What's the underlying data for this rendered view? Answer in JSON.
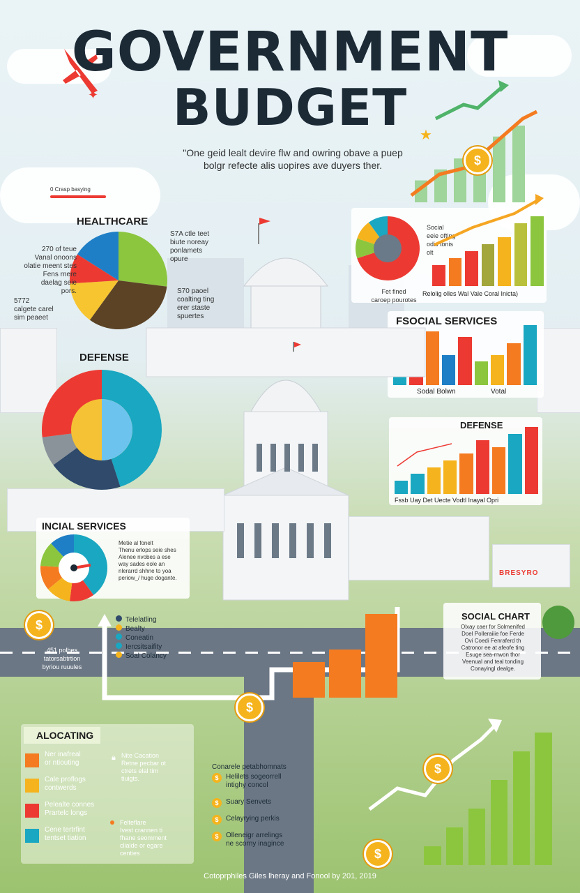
{
  "title": {
    "line1": "GOVERNMENT",
    "line2": "BUDGET"
  },
  "subtitle": "\"One geid lealt devire flw and owring obave a puep bolgr refecte alis uopires ave duyers ther.",
  "top_left_label": "0 Crasp basying",
  "healthcare": {
    "heading": "HEALTHCARE",
    "left_note_1": "270 of teue\nVanal onoons\nolatie meent stes\nFens rnere\ndaelag seie\npors.",
    "left_note_2": "5772\ncalgete carel\nsim peaeet",
    "right_note_1": "S7A ctle teet\nbiute noreay\nponlamets\nopure",
    "right_note_2": "S70 paoel\ncoalting ting\nerer staste\nspuertes",
    "slices": [
      {
        "label": "green",
        "value": 27,
        "color": "#8cc63f"
      },
      {
        "label": "brown",
        "value": 33,
        "color": "#5c4326"
      },
      {
        "label": "yellow",
        "value": 14,
        "color": "#f7c530"
      },
      {
        "label": "red",
        "value": 10,
        "color": "#ec3a32"
      },
      {
        "label": "blue",
        "value": 16,
        "color": "#1f7fc6"
      }
    ]
  },
  "social_donut": {
    "legend": "Social\neeie ofting\nodis tonis\nolt",
    "caption_left": "Fet fined\ncaroep pourotes",
    "bar_labels": "Relolig olles  Wal   Vale  Coral  Inicta)",
    "bars": [
      3,
      4,
      5,
      6,
      7,
      9,
      10
    ],
    "bar_colors": [
      "#ec3a32",
      "#f47b20",
      "#ec3a32",
      "#a3a63a",
      "#f5b41d",
      "#b9c13c",
      "#8cc63f"
    ]
  },
  "top_growth": {
    "bars": [
      2,
      3,
      4,
      5,
      6,
      7
    ],
    "bar_color": "#9fd49a"
  },
  "fsocial": {
    "heading": "FSOCIAL SERVICES",
    "label_1": "Sodal Bolwn",
    "label_2": "Votal",
    "bars": [
      6,
      9,
      9,
      5,
      8,
      4,
      5,
      7,
      10
    ],
    "bar_colors": [
      "#19a7c1",
      "#ec3a32",
      "#f47b20",
      "#1f7fc6",
      "#ec3a32",
      "#8cc63f",
      "#f5b41d",
      "#f47b20",
      "#19a7c1"
    ]
  },
  "defense_bars": {
    "heading": "DEFENSE",
    "labels": "Fssb  Uay     Det Uecte       Vodtl Inayal   Opri",
    "bars": [
      2,
      3,
      4,
      5,
      6,
      8,
      7,
      9,
      10
    ],
    "bar_colors": [
      "#19a7c1",
      "#19a7c1",
      "#f5b41d",
      "#f5b41d",
      "#f47b20",
      "#ec3a32",
      "#f47b20",
      "#19a7c1",
      "#ec3a32"
    ]
  },
  "defense_pie": {
    "heading": "DEFENSE",
    "slices": [
      {
        "label": "teal",
        "value": 45,
        "color": "#19a7c1"
      },
      {
        "label": "navy",
        "value": 20,
        "color": "#2f4a6b"
      },
      {
        "label": "grey",
        "value": 8,
        "color": "#8a929a"
      },
      {
        "label": "red",
        "value": 27,
        "color": "#ec3a32"
      }
    ]
  },
  "incial": {
    "heading": "INCIAL SERVICES",
    "note": "Metie al fonelt\nThenu erlops seie shes\nAlenee nvobes a ese\nway sades eole an\nnlerarrd shhne to yoa\nperiow_/ huge dogante."
  },
  "left_mid_note": "451 polhes\ntatorsabtrtion\nbyriou ruuules",
  "mid_legend": [
    {
      "text": "Telelatling",
      "color": "#2f4a6b"
    },
    {
      "text": "Bealty",
      "color": "#f5b41d"
    },
    {
      "text": "Coneatin",
      "color": "#19a7c1"
    },
    {
      "text": "Iercsitsaifity",
      "color": "#19a7c1"
    },
    {
      "text": "Soal Colancy",
      "color": "#f5b41d"
    }
  ],
  "social_chart": {
    "heading": "SOCIAL CHART",
    "note": "Olxay caer for Solmenifed\nDoel Polleraiiie foe Ferde\nOvi Coedi Fenraferd th\nCatronor ee at afeofe ting\nEsuge sea-mwon thor\nVeenual and teal tonding\nConayingl dealge."
  },
  "center_bars": {
    "values": [
      3,
      4,
      7
    ],
    "color": "#f47b20"
  },
  "allocating": {
    "heading": "ALOCATING",
    "items": [
      {
        "text": "Ner inafreal\nor ntiouting",
        "color": "#f47b20"
      },
      {
        "text": "Cale proflogs\ncontwerds",
        "color": "#f5b41d"
      },
      {
        "text": "Pelealte connes\nPrartelc longs",
        "color": "#ec3a32"
      },
      {
        "text": "Cene tertrfint\ntentset tiation",
        "color": "#19a7c1"
      }
    ],
    "side_note_1": "Nite Cacation\nRetne pecbar ot\nctrets elal tim\ntiuigts.",
    "side_note_2": "Felteflare\nIvest crannen ti\nfhane seomment\nclialde or egare\ncenties"
  },
  "bottom_list": {
    "intro": "Conarele petabhomnats",
    "items": [
      "Helilets sogeorrell\nintighy concol",
      "Suary Senvets",
      "Celayrying perkis",
      "Olleneigr arrelings\nne scorny inagince"
    ]
  },
  "bottom_growth": {
    "bars": [
      2,
      4,
      6,
      9,
      12,
      14
    ],
    "bar_color": "#8cc63f"
  },
  "building_sign": "BRESYRO",
  "footer": "Cotoprphiles Giles lheray and Fonool by 201, 2019"
}
